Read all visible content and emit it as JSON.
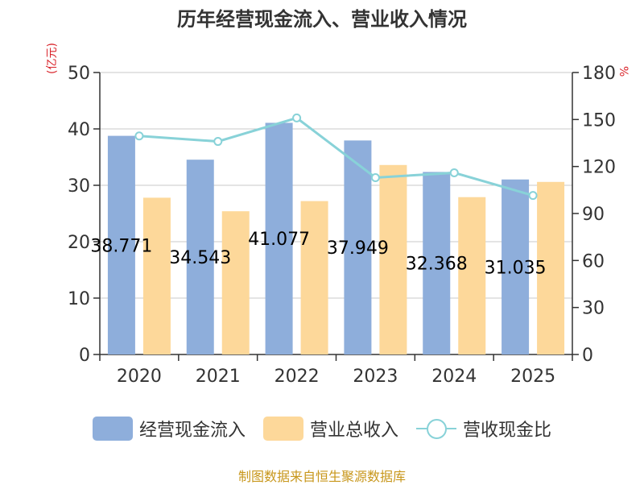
{
  "chart_data": {
    "type": "bar",
    "title": "历年经营现金流入、营业收入情况",
    "categories": [
      "2020",
      "2021",
      "2022",
      "2023",
      "2024",
      "2025"
    ],
    "series": [
      {
        "name": "经营现金流入",
        "type": "bar",
        "axis": "left",
        "color": "#8eaedb",
        "values": [
          38.771,
          34.543,
          41.077,
          37.949,
          32.368,
          31.035
        ],
        "labels": [
          "38.771",
          "34.543",
          "41.077",
          "37.949",
          "32.368",
          "31.035"
        ]
      },
      {
        "name": "营业总收入",
        "type": "bar",
        "axis": "left",
        "color": "#fdd89a",
        "values": [
          27.8,
          25.4,
          27.2,
          33.6,
          27.9,
          30.6
        ]
      },
      {
        "name": "营收现金比",
        "type": "line",
        "axis": "right",
        "color": "#88d2d8",
        "values": [
          139.5,
          136.0,
          151.0,
          112.9,
          116.0,
          101.5
        ]
      }
    ],
    "left_axis": {
      "label": "(亿元)",
      "ylim": [
        0,
        50
      ],
      "ticks": [
        "0",
        "10",
        "20",
        "30",
        "40",
        "50"
      ]
    },
    "right_axis": {
      "label": "%",
      "ylim": [
        0,
        180
      ],
      "ticks": [
        "0",
        "30",
        "60",
        "90",
        "120",
        "150",
        "180"
      ]
    },
    "legend": [
      "经营现金流入",
      "营业总收入",
      "营收现金比"
    ],
    "grid": true,
    "legend_position": "bottom"
  },
  "source": "制图数据来自恒生聚源数据库"
}
